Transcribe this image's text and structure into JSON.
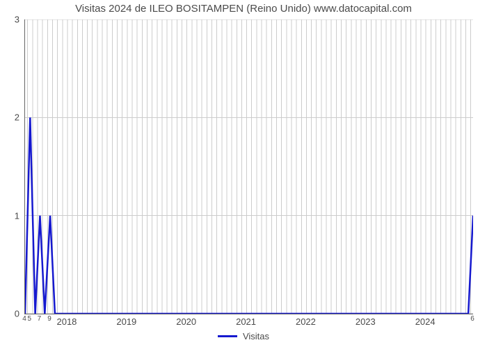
{
  "title": "Visitas 2024 de ILEO BOSITAMPEN (Reino Unido) www.datocapital.com",
  "chart": {
    "type": "line",
    "background_color": "#ffffff",
    "grid_color": "#cccccc",
    "axis_color": "#666666",
    "text_color": "#4a4a4a",
    "title_fontsize": 15,
    "tick_fontsize": 13,
    "x_domain": [
      2017.29,
      2024.79
    ],
    "y_domain": [
      0,
      3
    ],
    "y_ticks": [
      0,
      1,
      2,
      3
    ],
    "y_tick_labels": [
      "0",
      "1",
      "2",
      "3"
    ],
    "x_year_ticks": [
      2018,
      2019,
      2020,
      2021,
      2022,
      2023,
      2024
    ],
    "x_year_labels": [
      "2018",
      "2019",
      "2020",
      "2021",
      "2022",
      "2023",
      "2024"
    ],
    "x_minor_gridlines_per_year": 12,
    "x_bottom_small_left": [
      "4",
      "5",
      "7",
      "9"
    ],
    "x_bottom_small_left_pos": [
      2017.29,
      2017.375,
      2017.54,
      2017.71
    ],
    "x_bottom_small_right": "6",
    "x_bottom_small_right_pos": 2024.79,
    "series": {
      "name": "Visitas",
      "color": "#1619cf",
      "line_width": 2.5,
      "points": [
        [
          2017.29,
          0
        ],
        [
          2017.375,
          2
        ],
        [
          2017.46,
          0
        ],
        [
          2017.54,
          1
        ],
        [
          2017.62,
          0
        ],
        [
          2017.71,
          1
        ],
        [
          2017.79,
          0
        ],
        [
          2024.71,
          0
        ],
        [
          2024.79,
          1
        ]
      ]
    },
    "legend_label": "Visitas"
  }
}
